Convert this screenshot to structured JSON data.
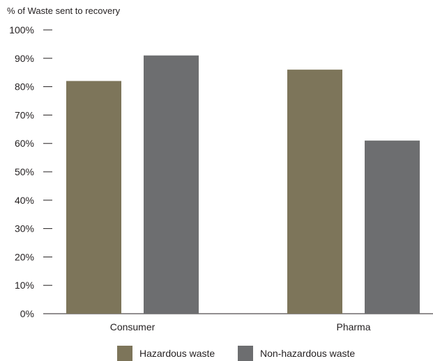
{
  "chart_data": {
    "type": "bar",
    "title": "",
    "ylabel": "% of Waste sent to recovery",
    "xlabel": "",
    "categories": [
      "Consumer",
      "Pharma"
    ],
    "series": [
      {
        "name": "Hazardous waste",
        "values": [
          82,
          86
        ],
        "color": "#7d755a"
      },
      {
        "name": "Non-hazardous waste",
        "values": [
          91,
          61
        ],
        "color": "#6d6e70"
      }
    ],
    "ylim": [
      0,
      100
    ],
    "yticks": [
      "0%",
      "10%",
      "20%",
      "30%",
      "40%",
      "50%",
      "60%",
      "70%",
      "80%",
      "90%",
      "100%"
    ],
    "grid": false,
    "legend_position": "bottom"
  }
}
